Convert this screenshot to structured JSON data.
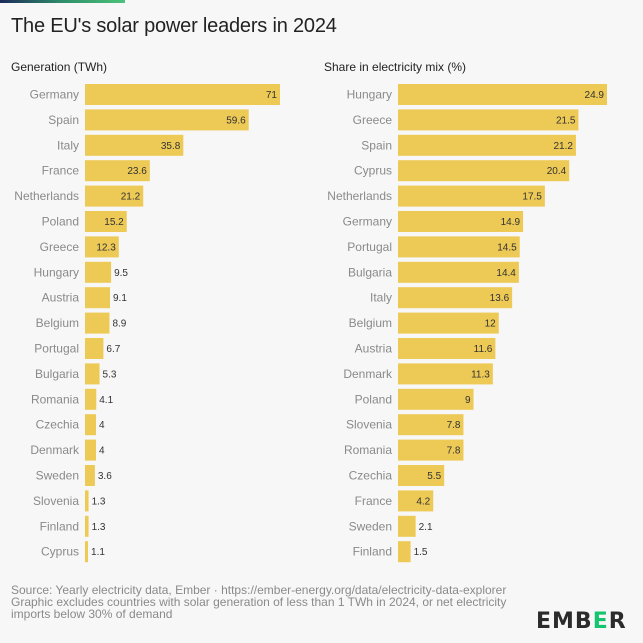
{
  "title": "The EU's solar power leaders in 2024",
  "colors": {
    "bar": "#EDC956",
    "background": "#f7f7f7",
    "logo_accent": "#17c46e"
  },
  "chart_data": [
    {
      "type": "bar",
      "orientation": "horizontal",
      "title": "Generation (TWh)",
      "categories": [
        "Germany",
        "Spain",
        "Italy",
        "France",
        "Netherlands",
        "Poland",
        "Greece",
        "Hungary",
        "Austria",
        "Belgium",
        "Portugal",
        "Bulgaria",
        "Romania",
        "Czechia",
        "Denmark",
        "Sweden",
        "Slovenia",
        "Finland",
        "Cyprus"
      ],
      "values": [
        71,
        59.6,
        35.8,
        23.6,
        21.2,
        15.2,
        12.3,
        9.5,
        9.1,
        8.9,
        6.7,
        5.3,
        4.1,
        4,
        4,
        3.6,
        1.3,
        1.3,
        1.1
      ],
      "xlim": [
        0,
        71
      ],
      "grid": false
    },
    {
      "type": "bar",
      "orientation": "horizontal",
      "title": "Share in electricity mix (%)",
      "categories": [
        "Hungary",
        "Greece",
        "Spain",
        "Cyprus",
        "Netherlands",
        "Germany",
        "Portugal",
        "Bulgaria",
        "Italy",
        "Belgium",
        "Austria",
        "Denmark",
        "Poland",
        "Slovenia",
        "Romania",
        "Czechia",
        "France",
        "Sweden",
        "Finland"
      ],
      "values": [
        24.9,
        21.5,
        21.2,
        20.4,
        17.5,
        14.9,
        14.5,
        14.4,
        13.6,
        12,
        11.6,
        11.3,
        9,
        7.8,
        7.8,
        5.5,
        4.2,
        2.1,
        1.5
      ],
      "xlim": [
        0,
        24.9
      ],
      "grid": false
    }
  ],
  "footer": {
    "source": "Source: Yearly electricity data, Ember · https://ember-energy.org/data/electricity-data-explorer",
    "note": "Graphic excludes countries with solar generation of less than 1 TWh in 2024, or net electricity imports below 30% of demand"
  },
  "logo": {
    "text": "EMBER",
    "pre": "EMB",
    "mid": "E",
    "post": "R"
  }
}
